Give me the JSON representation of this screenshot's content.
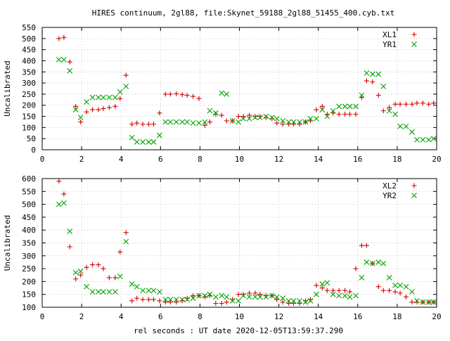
{
  "title": "HIRES continuum, 2gl88, file:Skynet_59188_2gl88_51455_400.cyb.txt",
  "xlabel": "rel seconds : UT date 2020-12-05T13:59:37.290",
  "colors": {
    "red": "#d40000",
    "green": "#00a000"
  },
  "chart_data": [
    {
      "type": "scatter",
      "ylabel": "Uncalibrated",
      "xlim": [
        0,
        20
      ],
      "ylim": [
        0,
        550
      ],
      "xticks": [
        0,
        2,
        4,
        6,
        8,
        10,
        12,
        14,
        16,
        18,
        20
      ],
      "yticks": [
        0,
        50,
        100,
        150,
        200,
        250,
        300,
        350,
        400,
        450,
        500,
        550
      ],
      "grid": true,
      "legend_position": "top-right",
      "series": [
        {
          "name": "XL1",
          "marker": "plus",
          "color": "#d40000",
          "x": [
            0.85,
            1.1,
            1.4,
            1.7,
            1.95,
            2.25,
            2.55,
            2.85,
            3.1,
            3.4,
            3.7,
            3.95,
            4.25,
            4.55,
            4.8,
            5.1,
            5.4,
            5.65,
            5.95,
            6.25,
            6.5,
            6.8,
            7.1,
            7.35,
            7.65,
            7.95,
            8.25,
            8.5,
            8.8,
            9.1,
            9.35,
            9.65,
            9.95,
            10.2,
            10.5,
            10.8,
            11.05,
            11.35,
            11.65,
            11.9,
            12.2,
            12.5,
            12.75,
            13.05,
            13.35,
            13.6,
            13.9,
            14.2,
            14.45,
            14.75,
            15.05,
            15.35,
            15.6,
            15.9,
            16.2,
            16.45,
            16.75,
            17.05,
            17.3,
            17.6,
            17.9,
            18.15,
            18.45,
            18.75,
            19.0,
            19.3,
            19.6,
            19.85
          ],
          "y": [
            500,
            505,
            395,
            195,
            125,
            170,
            180,
            180,
            185,
            190,
            195,
            230,
            335,
            115,
            120,
            115,
            115,
            115,
            165,
            250,
            250,
            252,
            248,
            245,
            240,
            230,
            110,
            125,
            160,
            155,
            130,
            130,
            150,
            150,
            155,
            150,
            150,
            145,
            140,
            120,
            115,
            115,
            115,
            115,
            125,
            130,
            180,
            195,
            160,
            165,
            160,
            160,
            160,
            160,
            235,
            310,
            305,
            245,
            175,
            190,
            205,
            205,
            205,
            205,
            210,
            210,
            205,
            210
          ]
        },
        {
          "name": "YR1",
          "marker": "cross",
          "color": "#00a000",
          "x": [
            0.85,
            1.1,
            1.4,
            1.7,
            1.95,
            2.25,
            2.55,
            2.85,
            3.1,
            3.4,
            3.7,
            3.95,
            4.25,
            4.55,
            4.8,
            5.1,
            5.4,
            5.65,
            5.95,
            6.25,
            6.5,
            6.8,
            7.1,
            7.35,
            7.65,
            7.95,
            8.25,
            8.5,
            8.8,
            9.1,
            9.35,
            9.65,
            9.95,
            10.2,
            10.5,
            10.8,
            11.05,
            11.35,
            11.65,
            11.9,
            12.2,
            12.5,
            12.75,
            13.05,
            13.35,
            13.6,
            13.9,
            14.2,
            14.45,
            14.75,
            15.05,
            15.35,
            15.6,
            15.9,
            16.2,
            16.45,
            16.75,
            17.05,
            17.3,
            17.6,
            17.9,
            18.15,
            18.45,
            18.75,
            19.0,
            19.3,
            19.6,
            19.85
          ],
          "y": [
            405,
            405,
            355,
            180,
            145,
            215,
            235,
            235,
            235,
            235,
            235,
            260,
            285,
            55,
            35,
            35,
            35,
            35,
            65,
            125,
            125,
            125,
            125,
            125,
            120,
            120,
            125,
            175,
            165,
            255,
            250,
            130,
            125,
            140,
            140,
            145,
            145,
            150,
            145,
            140,
            130,
            125,
            125,
            125,
            125,
            140,
            140,
            180,
            150,
            175,
            195,
            195,
            195,
            195,
            245,
            345,
            340,
            340,
            285,
            175,
            160,
            105,
            105,
            80,
            45,
            45,
            45,
            50
          ]
        }
      ]
    },
    {
      "type": "scatter",
      "ylabel": "Uncalibrated",
      "xlim": [
        0,
        20
      ],
      "ylim": [
        100,
        600
      ],
      "xticks": [
        0,
        2,
        4,
        6,
        8,
        10,
        12,
        14,
        16,
        18,
        20
      ],
      "yticks": [
        100,
        150,
        200,
        250,
        300,
        350,
        400,
        450,
        500,
        550,
        600
      ],
      "grid": true,
      "legend_position": "top-right",
      "series": [
        {
          "name": "XL2",
          "marker": "plus",
          "color": "#d40000",
          "x": [
            0.85,
            1.1,
            1.4,
            1.7,
            1.95,
            2.25,
            2.55,
            2.85,
            3.1,
            3.4,
            3.7,
            3.95,
            4.25,
            4.55,
            4.8,
            5.1,
            5.4,
            5.65,
            5.95,
            6.25,
            6.5,
            6.8,
            7.1,
            7.35,
            7.65,
            7.95,
            8.25,
            8.5,
            8.8,
            9.1,
            9.35,
            9.65,
            9.95,
            10.2,
            10.5,
            10.8,
            11.05,
            11.35,
            11.65,
            11.9,
            12.2,
            12.5,
            12.75,
            13.05,
            13.35,
            13.6,
            13.9,
            14.2,
            14.45,
            14.75,
            15.05,
            15.35,
            15.6,
            15.9,
            16.2,
            16.45,
            16.75,
            17.05,
            17.3,
            17.6,
            17.9,
            18.15,
            18.45,
            18.75,
            19.0,
            19.3,
            19.6,
            19.85
          ],
          "y": [
            590,
            540,
            335,
            210,
            225,
            255,
            265,
            265,
            250,
            215,
            215,
            315,
            390,
            125,
            135,
            130,
            130,
            130,
            125,
            120,
            120,
            120,
            125,
            135,
            145,
            145,
            140,
            145,
            115,
            115,
            120,
            130,
            150,
            150,
            155,
            155,
            150,
            145,
            145,
            130,
            120,
            115,
            115,
            115,
            125,
            130,
            185,
            175,
            165,
            165,
            165,
            165,
            160,
            250,
            340,
            340,
            270,
            180,
            165,
            165,
            160,
            155,
            140,
            120,
            120,
            120,
            120,
            120
          ]
        },
        {
          "name": "YR2",
          "marker": "cross",
          "color": "#00a000",
          "x": [
            0.85,
            1.1,
            1.4,
            1.7,
            1.95,
            2.25,
            2.55,
            2.85,
            3.1,
            3.4,
            3.7,
            3.95,
            4.25,
            4.55,
            4.8,
            5.1,
            5.4,
            5.65,
            5.95,
            6.25,
            6.5,
            6.8,
            7.1,
            7.35,
            7.65,
            7.95,
            8.25,
            8.5,
            8.8,
            9.1,
            9.35,
            9.65,
            9.95,
            10.2,
            10.5,
            10.8,
            11.05,
            11.35,
            11.65,
            11.9,
            12.2,
            12.5,
            12.75,
            13.05,
            13.35,
            13.6,
            13.9,
            14.2,
            14.45,
            14.75,
            15.05,
            15.35,
            15.6,
            15.9,
            16.2,
            16.45,
            16.75,
            17.05,
            17.3,
            17.6,
            17.9,
            18.15,
            18.45,
            18.75,
            19.0,
            19.3,
            19.6,
            19.85
          ],
          "y": [
            500,
            505,
            395,
            235,
            240,
            180,
            160,
            160,
            160,
            160,
            160,
            220,
            355,
            190,
            180,
            165,
            165,
            165,
            160,
            130,
            130,
            130,
            130,
            130,
            135,
            145,
            145,
            150,
            140,
            145,
            140,
            125,
            125,
            145,
            140,
            140,
            140,
            140,
            145,
            140,
            135,
            125,
            125,
            125,
            120,
            125,
            150,
            190,
            195,
            150,
            145,
            145,
            140,
            145,
            215,
            275,
            270,
            275,
            270,
            215,
            185,
            185,
            180,
            160,
            125,
            120,
            120,
            120
          ]
        }
      ]
    }
  ]
}
